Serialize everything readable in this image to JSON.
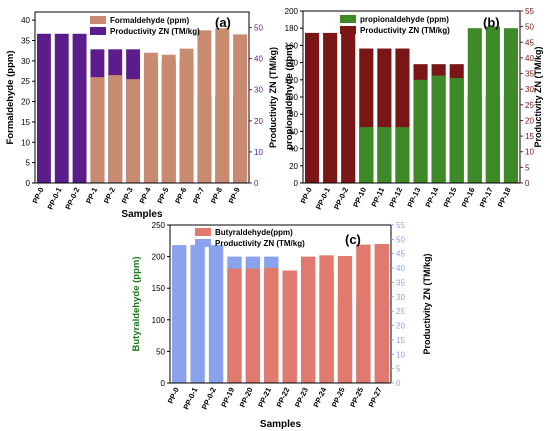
{
  "chart_data": [
    {
      "panel": "(a)",
      "type": "bar",
      "title": "",
      "xlabel": "Samples",
      "ylabel": "Formaldehyde (ppm)",
      "y2label": "Productivity ZN (TM/kg)",
      "categories": [
        "PP-0",
        "PP-0-1",
        "PP-0-2",
        "PP-1",
        "PP-2",
        "PP-3",
        "PP-4",
        "PP-5",
        "PP-6",
        "PP-7",
        "PP-8",
        "PP-9"
      ],
      "series": [
        {
          "name": "Formaldehyde (ppm)",
          "axis": "left",
          "color": "#c98a72",
          "values": [
            0,
            0,
            0,
            26,
            26.5,
            25.5,
            32,
            31.5,
            33,
            37.5,
            38,
            36.5
          ]
        },
        {
          "name": "Productivity ZN (TM/kg)",
          "axis": "right",
          "color": "#5b1d8c",
          "values": [
            48,
            48,
            48,
            43,
            43,
            43,
            39,
            39,
            39,
            28,
            28,
            28
          ]
        }
      ],
      "ylim": [
        0,
        42
      ],
      "y2lim": [
        0,
        55
      ],
      "yticks": [
        0,
        5,
        10,
        15,
        20,
        25,
        30,
        35,
        40
      ],
      "y2ticks": [
        0,
        10,
        20,
        30,
        40,
        50
      ],
      "legend": "top-left"
    },
    {
      "panel": "(b)",
      "type": "bar",
      "title": "",
      "xlabel": "",
      "ylabel": "propionaldehyde (ppm)",
      "y2label": "Productivity ZN (TM/kg)",
      "categories": [
        "PP-0",
        "PP-0-1",
        "PP-0-2",
        "PP-10",
        "PP-11",
        "PP-12",
        "PP-13",
        "PP-14",
        "PP-15",
        "PP-16",
        "PP-17",
        "PP-18"
      ],
      "series": [
        {
          "name": "propionaldehyde (ppm)",
          "axis": "left",
          "color": "#3f8a28",
          "values": [
            0,
            0,
            0,
            65,
            65,
            65,
            120,
            125,
            122,
            180,
            182,
            180
          ]
        },
        {
          "name": "Productivity ZN (TM/kg)",
          "axis": "right",
          "color": "#7a1616",
          "values": [
            48,
            48,
            48,
            43,
            43,
            43,
            38,
            38,
            38,
            28,
            28,
            28
          ]
        }
      ],
      "ylim": [
        0,
        200
      ],
      "y2lim": [
        0,
        55
      ],
      "yticks": [
        0,
        20,
        40,
        60,
        80,
        100,
        120,
        140,
        160,
        180,
        200
      ],
      "y2ticks": [
        0,
        5,
        10,
        15,
        20,
        25,
        30,
        35,
        40,
        45,
        50,
        55
      ],
      "legend": "top-left"
    },
    {
      "panel": "(c)",
      "type": "bar",
      "title": "",
      "xlabel": "Samples",
      "ylabel": "Butyraldehyde (ppm)",
      "y2label": "Productivity ZN (TM/kg)",
      "categories": [
        "PP-0",
        "PP-0-1",
        "PP-0-2",
        "PP-19",
        "PP-20",
        "PP-21",
        "PP-22",
        "PP-23",
        "PP-24",
        "PP-25",
        "PP-25",
        "PP-27"
      ],
      "series": [
        {
          "name": "Butyraldehyde(ppm)",
          "axis": "left",
          "color": "#e07a6e",
          "values": [
            0,
            0,
            0,
            181,
            181,
            182,
            178,
            200,
            202,
            201,
            219,
            220
          ]
        },
        {
          "name": "Productivity  ZN (TM/kg)",
          "axis": "right",
          "color": "#8aa2ee",
          "values": [
            48,
            48,
            48,
            44,
            44,
            44,
            39,
            39,
            39,
            29,
            29,
            28
          ]
        }
      ],
      "ylim": [
        0,
        250
      ],
      "y2lim": [
        0,
        55
      ],
      "yticks": [
        0,
        50,
        100,
        150,
        200,
        250
      ],
      "y2ticks": [
        0,
        5,
        10,
        15,
        20,
        25,
        30,
        35,
        40,
        45,
        50,
        55
      ],
      "legend": "top-left"
    }
  ]
}
